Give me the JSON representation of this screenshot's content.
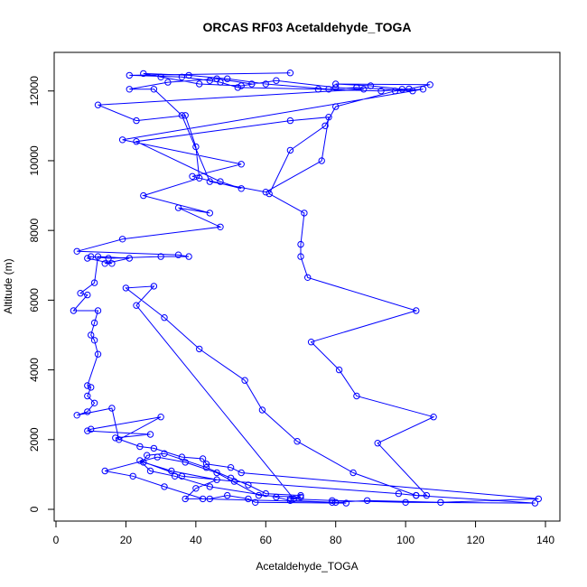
{
  "chart_data": {
    "type": "line",
    "title": "ORCAS RF03 Acetaldehyde_TOGA",
    "xlabel": "Acetaldehyde_TOGA",
    "ylabel": "Altitude (m)",
    "xlim": [
      0,
      140
    ],
    "ylim": [
      0,
      12500
    ],
    "xticks": [
      0,
      20,
      40,
      60,
      80,
      100,
      120,
      140
    ],
    "yticks": [
      0,
      2000,
      4000,
      6000,
      8000,
      10000,
      12000
    ],
    "grid": false,
    "series_color": "#0000ff",
    "series": [
      {
        "marker": "circle",
        "points": [
          [
            67,
            12520
          ],
          [
            21,
            12450
          ],
          [
            36,
            12400
          ],
          [
            44,
            12300
          ],
          [
            47,
            12250
          ],
          [
            52,
            12100
          ],
          [
            75,
            12050
          ],
          [
            93,
            12000
          ],
          [
            101,
            12060
          ],
          [
            107,
            12180
          ],
          [
            80,
            12200
          ],
          [
            90,
            12150
          ],
          [
            99,
            12050
          ],
          [
            102,
            12000
          ],
          [
            86,
            12100
          ],
          [
            78,
            12050
          ],
          [
            60,
            12200
          ],
          [
            49,
            12350
          ],
          [
            38,
            12450
          ],
          [
            25,
            12500
          ],
          [
            30,
            12400
          ],
          [
            41,
            12200
          ],
          [
            53,
            12150
          ],
          [
            63,
            12300
          ],
          [
            80,
            12100
          ],
          [
            88,
            12050
          ],
          [
            12,
            11600
          ],
          [
            23,
            11150
          ],
          [
            37,
            11300
          ],
          [
            40,
            10400
          ],
          [
            41,
            9500
          ],
          [
            25,
            9000
          ],
          [
            44,
            8500
          ],
          [
            35,
            8650
          ],
          [
            47,
            8100
          ],
          [
            19,
            7750
          ],
          [
            6,
            7400
          ],
          [
            35,
            7300
          ],
          [
            38,
            7250
          ],
          [
            30,
            7250
          ],
          [
            15,
            7200
          ],
          [
            10,
            7250
          ],
          [
            9,
            7200
          ],
          [
            16,
            7050
          ],
          [
            14,
            7050
          ],
          [
            21,
            7200
          ],
          [
            12,
            7250
          ],
          [
            11,
            6500
          ],
          [
            7,
            6200
          ],
          [
            9,
            6150
          ],
          [
            5,
            5700
          ],
          [
            12,
            5700
          ],
          [
            11,
            5350
          ],
          [
            10,
            5000
          ],
          [
            11,
            4850
          ],
          [
            12,
            4450
          ],
          [
            9,
            3550
          ],
          [
            10,
            3500
          ],
          [
            9,
            3250
          ],
          [
            11,
            3050
          ],
          [
            9,
            2800
          ],
          [
            6,
            2700
          ],
          [
            16,
            2900
          ],
          [
            18,
            2000
          ],
          [
            30,
            2650
          ],
          [
            10,
            2300
          ],
          [
            9,
            2250
          ],
          [
            27,
            2150
          ],
          [
            17,
            2050
          ],
          [
            24,
            1800
          ],
          [
            28,
            1750
          ],
          [
            36,
            1500
          ],
          [
            42,
            1450
          ],
          [
            43,
            1300
          ],
          [
            50,
            1200
          ],
          [
            53,
            1050
          ],
          [
            138,
            300
          ],
          [
            110,
            200
          ],
          [
            89,
            250
          ],
          [
            80,
            200
          ],
          [
            42,
            300
          ],
          [
            31,
            650
          ],
          [
            22,
            950
          ],
          [
            14,
            1100
          ],
          [
            29,
            1500
          ],
          [
            37,
            1350
          ],
          [
            46,
            1050
          ],
          [
            58,
            400
          ],
          [
            70,
            350
          ],
          [
            67,
            300
          ],
          [
            79,
            250
          ],
          [
            100,
            200
          ],
          [
            137,
            180
          ],
          [
            103,
            400
          ],
          [
            98,
            450
          ],
          [
            51,
            800
          ],
          [
            36,
            950
          ],
          [
            24,
            1400
          ],
          [
            27,
            1100
          ],
          [
            34,
            950
          ],
          [
            44,
            650
          ],
          [
            63,
            350
          ],
          [
            67,
            250
          ],
          [
            79,
            200
          ],
          [
            83,
            180
          ],
          [
            57,
            200
          ],
          [
            55,
            300
          ],
          [
            49,
            400
          ],
          [
            44,
            300
          ],
          [
            37,
            300
          ],
          [
            40,
            600
          ],
          [
            46,
            850
          ],
          [
            33,
            1100
          ],
          [
            25,
            1350
          ],
          [
            26,
            1550
          ],
          [
            31,
            1600
          ],
          [
            43,
            1200
          ],
          [
            50,
            900
          ],
          [
            55,
            700
          ],
          [
            60,
            450
          ],
          [
            70,
            400
          ],
          [
            68,
            300
          ],
          [
            23,
            5850
          ],
          [
            28,
            6400
          ],
          [
            20,
            6350
          ],
          [
            31,
            5500
          ],
          [
            41,
            4600
          ],
          [
            54,
            3700
          ],
          [
            59,
            2850
          ],
          [
            69,
            1950
          ],
          [
            85,
            1050
          ],
          [
            103,
            400
          ],
          [
            106,
            400
          ],
          [
            92,
            1900
          ],
          [
            108,
            2650
          ],
          [
            86,
            3250
          ],
          [
            81,
            4000
          ],
          [
            73,
            4800
          ],
          [
            103,
            5700
          ],
          [
            72,
            6650
          ],
          [
            70,
            7250
          ],
          [
            70,
            7600
          ],
          [
            71,
            8500
          ],
          [
            61,
            9050
          ],
          [
            67,
            10300
          ],
          [
            77,
            11000
          ],
          [
            80,
            11550
          ],
          [
            97,
            12000
          ],
          [
            105,
            12050
          ],
          [
            19,
            10600
          ],
          [
            53,
            9900
          ],
          [
            39,
            9550
          ],
          [
            53,
            9200
          ],
          [
            47,
            9400
          ],
          [
            23,
            10550
          ],
          [
            67,
            11150
          ],
          [
            78,
            11250
          ],
          [
            76,
            10000
          ],
          [
            60,
            9100
          ],
          [
            44,
            9400
          ],
          [
            36,
            11300
          ],
          [
            28,
            12050
          ],
          [
            21,
            12050
          ],
          [
            32,
            12250
          ],
          [
            46,
            12350
          ],
          [
            56,
            12200
          ]
        ]
      }
    ]
  }
}
